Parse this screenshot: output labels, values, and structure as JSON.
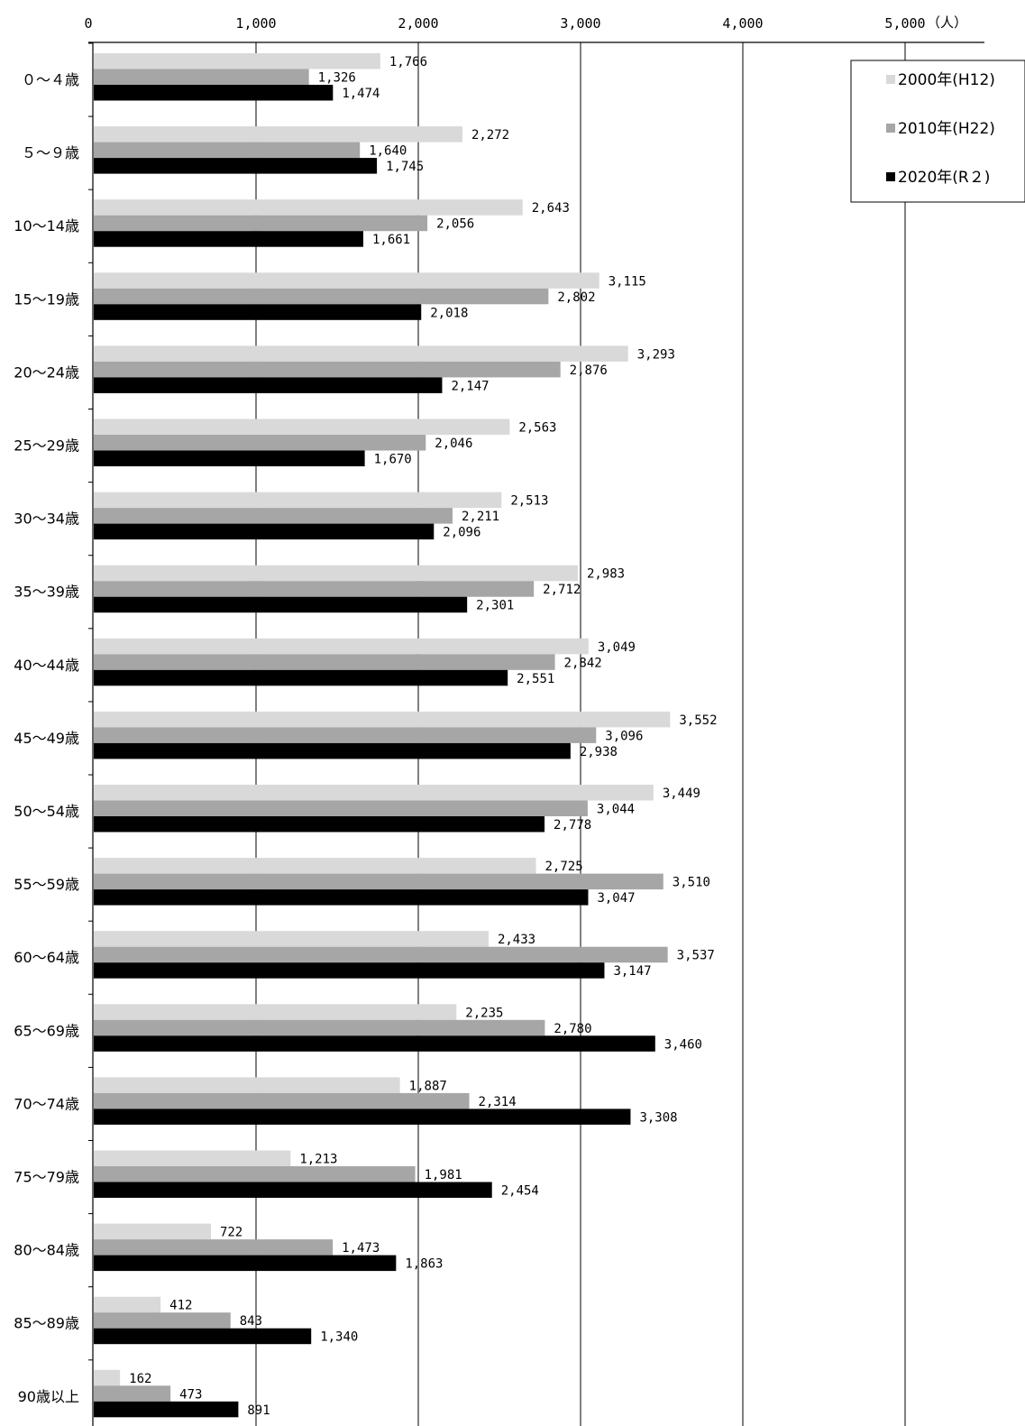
{
  "chart_data": {
    "type": "bar",
    "orientation": "horizontal",
    "unit": "（人）",
    "xlim": [
      0,
      5600
    ],
    "xticks": [
      0,
      1000,
      2000,
      3000,
      4000,
      5000
    ],
    "xtick_labels": [
      "0",
      "1,000",
      "2,000",
      "3,000",
      "4,000",
      "5,000"
    ],
    "grid": true,
    "legend_position": "top-right",
    "categories": [
      "０～４歳",
      "５～９歳",
      "10～14歳",
      "15～19歳",
      "20～24歳",
      "25～29歳",
      "30～34歳",
      "35～39歳",
      "40～44歳",
      "45～49歳",
      "50～54歳",
      "55～59歳",
      "60～64歳",
      "65～69歳",
      "70～74歳",
      "75～79歳",
      "80～84歳",
      "85～89歳",
      "90歳以上"
    ],
    "series": [
      {
        "name": "2000年(H12)",
        "color": "#d9d9d9",
        "values": [
          1766,
          2272,
          2643,
          3115,
          3293,
          2563,
          2513,
          2983,
          3049,
          3552,
          3449,
          2725,
          2433,
          2235,
          1887,
          1213,
          722,
          412,
          162
        ],
        "labels": [
          "1,766",
          "2,272",
          "2,643",
          "3,115",
          "3,293",
          "2,563",
          "2,513",
          "2,983",
          "3,049",
          "3,552",
          "3,449",
          "2,725",
          "2,433",
          "2,235",
          "1,887",
          "1,213",
          "722",
          "412",
          "162"
        ]
      },
      {
        "name": "2010年(H22)",
        "color": "#a6a6a6",
        "values": [
          1326,
          1640,
          2056,
          2802,
          2876,
          2046,
          2211,
          2712,
          2842,
          3096,
          3044,
          3510,
          3537,
          2780,
          2314,
          1981,
          1473,
          843,
          473
        ],
        "labels": [
          "1,326",
          "1,640",
          "2,056",
          "2,802",
          "2,876",
          "2,046",
          "2,211",
          "2,712",
          "2,842",
          "3,096",
          "3,044",
          "3,510",
          "3,537",
          "2,780",
          "2,314",
          "1,981",
          "1,473",
          "843",
          "473"
        ]
      },
      {
        "name": "2020年(R２)",
        "color": "#000000",
        "values": [
          1474,
          1745,
          1661,
          2018,
          2147,
          1670,
          2096,
          2301,
          2551,
          2938,
          2778,
          3047,
          3147,
          3460,
          3308,
          2454,
          1863,
          1340,
          891
        ],
        "labels": [
          "1,474",
          "1,745",
          "1,661",
          "2,018",
          "2,147",
          "1,670",
          "2,096",
          "2,301",
          "2,551",
          "2,938",
          "2,778",
          "3,047",
          "3,147",
          "3,460",
          "3,308",
          "2,454",
          "1,863",
          "1,340",
          "891"
        ]
      }
    ]
  }
}
